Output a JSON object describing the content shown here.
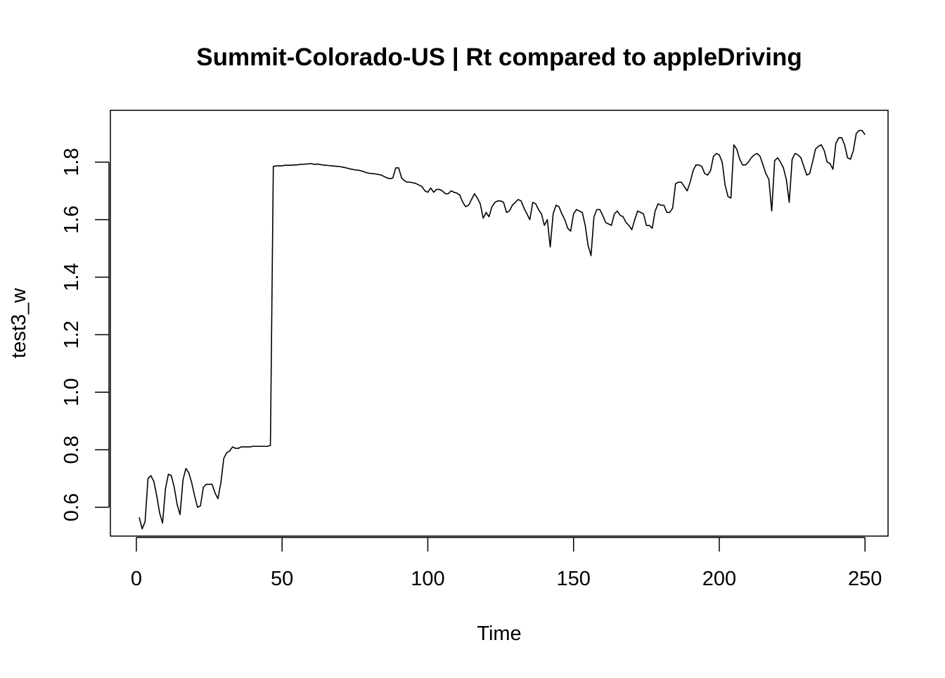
{
  "chart_data": {
    "type": "line",
    "title": "Summit-Colorado-US | Rt compared to appleDriving",
    "xlabel": "Time",
    "ylabel": "test3_w",
    "xlim": [
      -8.9,
      257.9
    ],
    "ylim": [
      0.5,
      1.98
    ],
    "x_ticks": [
      0,
      50,
      100,
      150,
      200,
      250
    ],
    "y_ticks": [
      0.6,
      0.8,
      1.0,
      1.2,
      1.4,
      1.6,
      1.8
    ],
    "x_tick_labels": [
      "0",
      "50",
      "100",
      "150",
      "200",
      "250"
    ],
    "y_tick_labels": [
      "0.6",
      "0.8",
      "1.0",
      "1.2",
      "1.4",
      "1.6",
      "1.8"
    ],
    "grid": false,
    "legend": "none",
    "series": [
      {
        "color": "#000000",
        "x_start": 1,
        "values": [
          0.565,
          0.525,
          0.55,
          0.7,
          0.71,
          0.69,
          0.64,
          0.58,
          0.545,
          0.665,
          0.715,
          0.71,
          0.67,
          0.61,
          0.575,
          0.695,
          0.735,
          0.72,
          0.685,
          0.64,
          0.6,
          0.605,
          0.67,
          0.68,
          0.68,
          0.68,
          0.65,
          0.63,
          0.685,
          0.77,
          0.79,
          0.795,
          0.81,
          0.805,
          0.805,
          0.81,
          0.81,
          0.81,
          0.81,
          0.812,
          0.812,
          0.812,
          0.812,
          0.812,
          0.812,
          0.815,
          1.785,
          1.787,
          1.787,
          1.787,
          1.789,
          1.789,
          1.789,
          1.79,
          1.79,
          1.792,
          1.792,
          1.793,
          1.794,
          1.795,
          1.792,
          1.793,
          1.792,
          1.79,
          1.789,
          1.788,
          1.787,
          1.786,
          1.785,
          1.784,
          1.782,
          1.78,
          1.777,
          1.775,
          1.773,
          1.772,
          1.77,
          1.767,
          1.763,
          1.761,
          1.76,
          1.759,
          1.757,
          1.755,
          1.75,
          1.745,
          1.742,
          1.745,
          1.78,
          1.78,
          1.745,
          1.735,
          1.73,
          1.73,
          1.728,
          1.725,
          1.72,
          1.715,
          1.7,
          1.695,
          1.71,
          1.695,
          1.705,
          1.705,
          1.7,
          1.69,
          1.69,
          1.7,
          1.695,
          1.692,
          1.685,
          1.66,
          1.645,
          1.65,
          1.67,
          1.69,
          1.675,
          1.655,
          1.605,
          1.625,
          1.61,
          1.645,
          1.66,
          1.665,
          1.665,
          1.66,
          1.625,
          1.63,
          1.65,
          1.66,
          1.67,
          1.665,
          1.64,
          1.62,
          1.6,
          1.66,
          1.655,
          1.635,
          1.62,
          1.58,
          1.6,
          1.505,
          1.62,
          1.65,
          1.645,
          1.62,
          1.6,
          1.57,
          1.56,
          1.62,
          1.635,
          1.63,
          1.625,
          1.58,
          1.51,
          1.475,
          1.61,
          1.635,
          1.635,
          1.615,
          1.59,
          1.585,
          1.58,
          1.62,
          1.63,
          1.615,
          1.61,
          1.59,
          1.58,
          1.565,
          1.6,
          1.63,
          1.625,
          1.62,
          1.58,
          1.58,
          1.57,
          1.63,
          1.655,
          1.65,
          1.65,
          1.625,
          1.625,
          1.64,
          1.725,
          1.73,
          1.73,
          1.715,
          1.7,
          1.73,
          1.77,
          1.79,
          1.79,
          1.785,
          1.76,
          1.755,
          1.77,
          1.82,
          1.83,
          1.825,
          1.8,
          1.72,
          1.68,
          1.675,
          1.86,
          1.845,
          1.81,
          1.79,
          1.79,
          1.8,
          1.815,
          1.825,
          1.83,
          1.82,
          1.79,
          1.76,
          1.74,
          1.63,
          1.805,
          1.815,
          1.8,
          1.78,
          1.74,
          1.66,
          1.81,
          1.83,
          1.825,
          1.815,
          1.785,
          1.755,
          1.76,
          1.8,
          1.845,
          1.855,
          1.86,
          1.84,
          1.8,
          1.795,
          1.775,
          1.865,
          1.885,
          1.885,
          1.86,
          1.815,
          1.81,
          1.84,
          1.9,
          1.91,
          1.91,
          1.895
        ]
      }
    ]
  }
}
